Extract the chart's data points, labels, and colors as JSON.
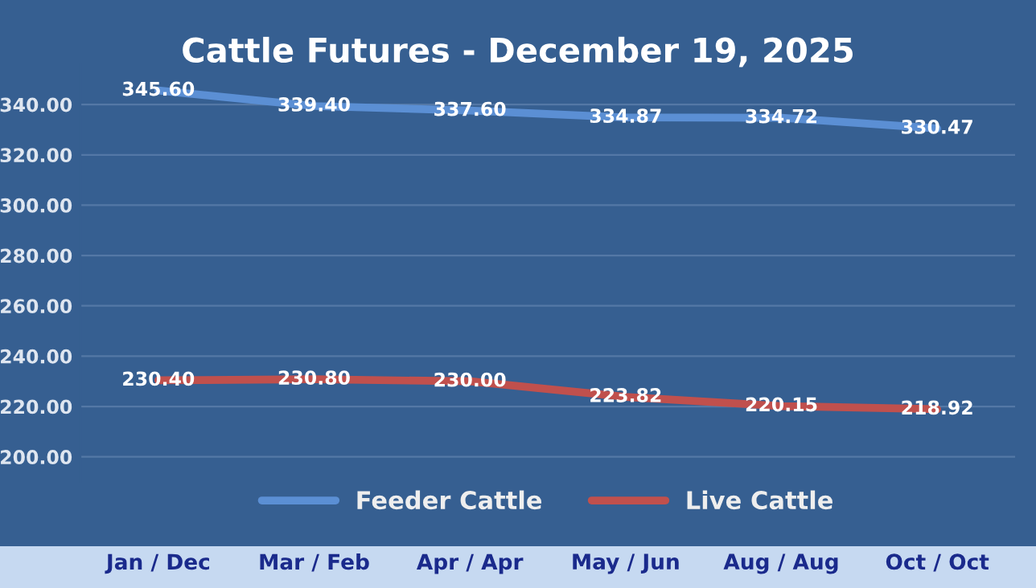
{
  "chart_data": {
    "type": "line",
    "title": "Cattle Futures - December 19, 2025",
    "categories": [
      "Jan / Dec",
      "Mar / Feb",
      "Apr / Apr",
      "May / Jun",
      "Aug / Aug",
      "Oct / Oct"
    ],
    "series": [
      {
        "name": "Feeder Cattle",
        "color": "#5b8fd4",
        "values": [
          345.6,
          339.4,
          337.6,
          334.87,
          334.72,
          330.47
        ],
        "value_labels": [
          "345.60",
          "339.40",
          "337.60",
          "334.87",
          "334.72",
          "330.47"
        ]
      },
      {
        "name": "Live Cattle",
        "color": "#c0504d",
        "values": [
          230.4,
          230.8,
          230.0,
          223.82,
          220.15,
          218.92
        ],
        "value_labels": [
          "230.40",
          "230.80",
          "230.00",
          "223.82",
          "220.15",
          "218.92"
        ]
      }
    ],
    "ylim": [
      190,
      356
    ],
    "yticks": [
      {
        "value": 200,
        "label": "200.00"
      },
      {
        "value": 220,
        "label": "220.00"
      },
      {
        "value": 240,
        "label": "240.00"
      },
      {
        "value": 260,
        "label": "260.00"
      },
      {
        "value": 280,
        "label": "280.00"
      },
      {
        "value": 300,
        "label": "300.00"
      },
      {
        "value": 320,
        "label": "320.00"
      },
      {
        "value": 340,
        "label": "340.00"
      }
    ],
    "grid": "y",
    "legend": "bottom",
    "marker": "none",
    "line_style": "solid"
  }
}
